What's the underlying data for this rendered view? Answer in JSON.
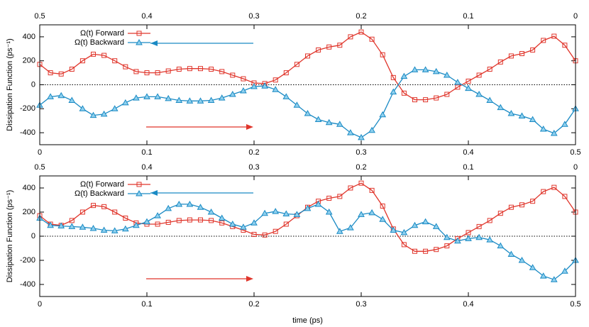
{
  "chart_data": [
    {
      "type": "line",
      "ylabel": "Dissipation Function (ps⁻¹)",
      "legend": "upper left",
      "x": [
        0,
        0.01,
        0.02,
        0.03,
        0.04,
        0.05,
        0.06,
        0.07,
        0.08,
        0.09,
        0.1,
        0.11,
        0.12,
        0.13,
        0.14,
        0.15,
        0.16,
        0.17,
        0.18,
        0.19,
        0.2,
        0.21,
        0.22,
        0.23,
        0.24,
        0.25,
        0.26,
        0.27,
        0.28,
        0.29,
        0.3,
        0.31,
        0.32,
        0.33,
        0.34,
        0.35,
        0.36,
        0.37,
        0.38,
        0.39,
        0.4,
        0.41,
        0.42,
        0.43,
        0.44,
        0.45,
        0.46,
        0.47,
        0.48,
        0.49,
        0.5
      ],
      "xlim": [
        0,
        0.5
      ],
      "xticks": [
        0,
        0.1,
        0.2,
        0.3,
        0.4,
        0.5
      ],
      "x2lim": [
        0.5,
        0
      ],
      "x2ticks": [
        0.5,
        0.4,
        0.3,
        0.2,
        0.1,
        0
      ],
      "ylim": [
        -500,
        500
      ],
      "yticks": [
        -400,
        -200,
        0,
        200,
        400
      ],
      "series": [
        {
          "name": "Ω(t) Forward",
          "color": "#e0352b",
          "marker": "square",
          "values": [
            170,
            100,
            90,
            130,
            200,
            255,
            245,
            200,
            150,
            110,
            100,
            100,
            115,
            130,
            135,
            135,
            130,
            110,
            80,
            50,
            15,
            10,
            40,
            100,
            170,
            240,
            290,
            315,
            330,
            400,
            440,
            380,
            250,
            60,
            -70,
            -125,
            -125,
            -110,
            -80,
            -20,
            30,
            80,
            130,
            190,
            240,
            260,
            290,
            370,
            405,
            330,
            200
          ]
        },
        {
          "name": "Ω(t) Backward",
          "color": "#1a8ac4",
          "marker": "triangle",
          "values": [
            -170,
            -100,
            -90,
            -130,
            -200,
            -255,
            -245,
            -200,
            -150,
            -110,
            -100,
            -100,
            -115,
            -130,
            -135,
            -135,
            -130,
            -110,
            -80,
            -50,
            -15,
            -10,
            -40,
            -100,
            -170,
            -240,
            -290,
            -315,
            -330,
            -400,
            -440,
            -380,
            -250,
            -60,
            70,
            125,
            125,
            110,
            80,
            20,
            -30,
            -80,
            -130,
            -190,
            -240,
            -260,
            -290,
            -370,
            -405,
            -330,
            -200
          ]
        }
      ]
    },
    {
      "type": "line",
      "ylabel": "Dissipation Function (ps⁻¹)",
      "xlabel": "time (ps)",
      "legend": "upper left",
      "x": [
        0,
        0.01,
        0.02,
        0.03,
        0.04,
        0.05,
        0.06,
        0.07,
        0.08,
        0.09,
        0.1,
        0.11,
        0.12,
        0.13,
        0.14,
        0.15,
        0.16,
        0.17,
        0.18,
        0.19,
        0.2,
        0.21,
        0.22,
        0.23,
        0.24,
        0.25,
        0.26,
        0.27,
        0.28,
        0.29,
        0.3,
        0.31,
        0.32,
        0.33,
        0.34,
        0.35,
        0.36,
        0.37,
        0.38,
        0.39,
        0.4,
        0.41,
        0.42,
        0.43,
        0.44,
        0.45,
        0.46,
        0.47,
        0.48,
        0.49,
        0.5
      ],
      "xlim": [
        0,
        0.5
      ],
      "xticks": [
        0,
        0.1,
        0.2,
        0.3,
        0.4,
        0.5
      ],
      "x2lim": [
        0.5,
        0
      ],
      "x2ticks": [
        0.5,
        0.4,
        0.3,
        0.2,
        0.1,
        0
      ],
      "ylim": [
        -500,
        500
      ],
      "yticks": [
        -400,
        -200,
        0,
        200,
        400
      ],
      "series": [
        {
          "name": "Ω(t) Forward",
          "color": "#e0352b",
          "marker": "square",
          "values": [
            170,
            100,
            90,
            130,
            200,
            255,
            245,
            200,
            150,
            110,
            100,
            100,
            115,
            130,
            135,
            135,
            130,
            110,
            80,
            50,
            15,
            10,
            40,
            100,
            170,
            240,
            290,
            315,
            330,
            400,
            440,
            380,
            250,
            60,
            -70,
            -125,
            -125,
            -110,
            -80,
            -20,
            30,
            80,
            130,
            190,
            240,
            260,
            290,
            370,
            405,
            330,
            200
          ]
        },
        {
          "name": "Ω(t) Backward",
          "color": "#1a8ac4",
          "marker": "triangle",
          "values": [
            150,
            90,
            85,
            80,
            75,
            65,
            50,
            45,
            60,
            90,
            120,
            170,
            230,
            265,
            265,
            240,
            200,
            150,
            100,
            75,
            110,
            190,
            205,
            185,
            180,
            230,
            265,
            200,
            40,
            70,
            180,
            195,
            140,
            50,
            30,
            90,
            120,
            80,
            -10,
            -40,
            -20,
            -10,
            -30,
            -80,
            -150,
            -200,
            -260,
            -330,
            -360,
            -290,
            -200
          ]
        }
      ]
    }
  ]
}
